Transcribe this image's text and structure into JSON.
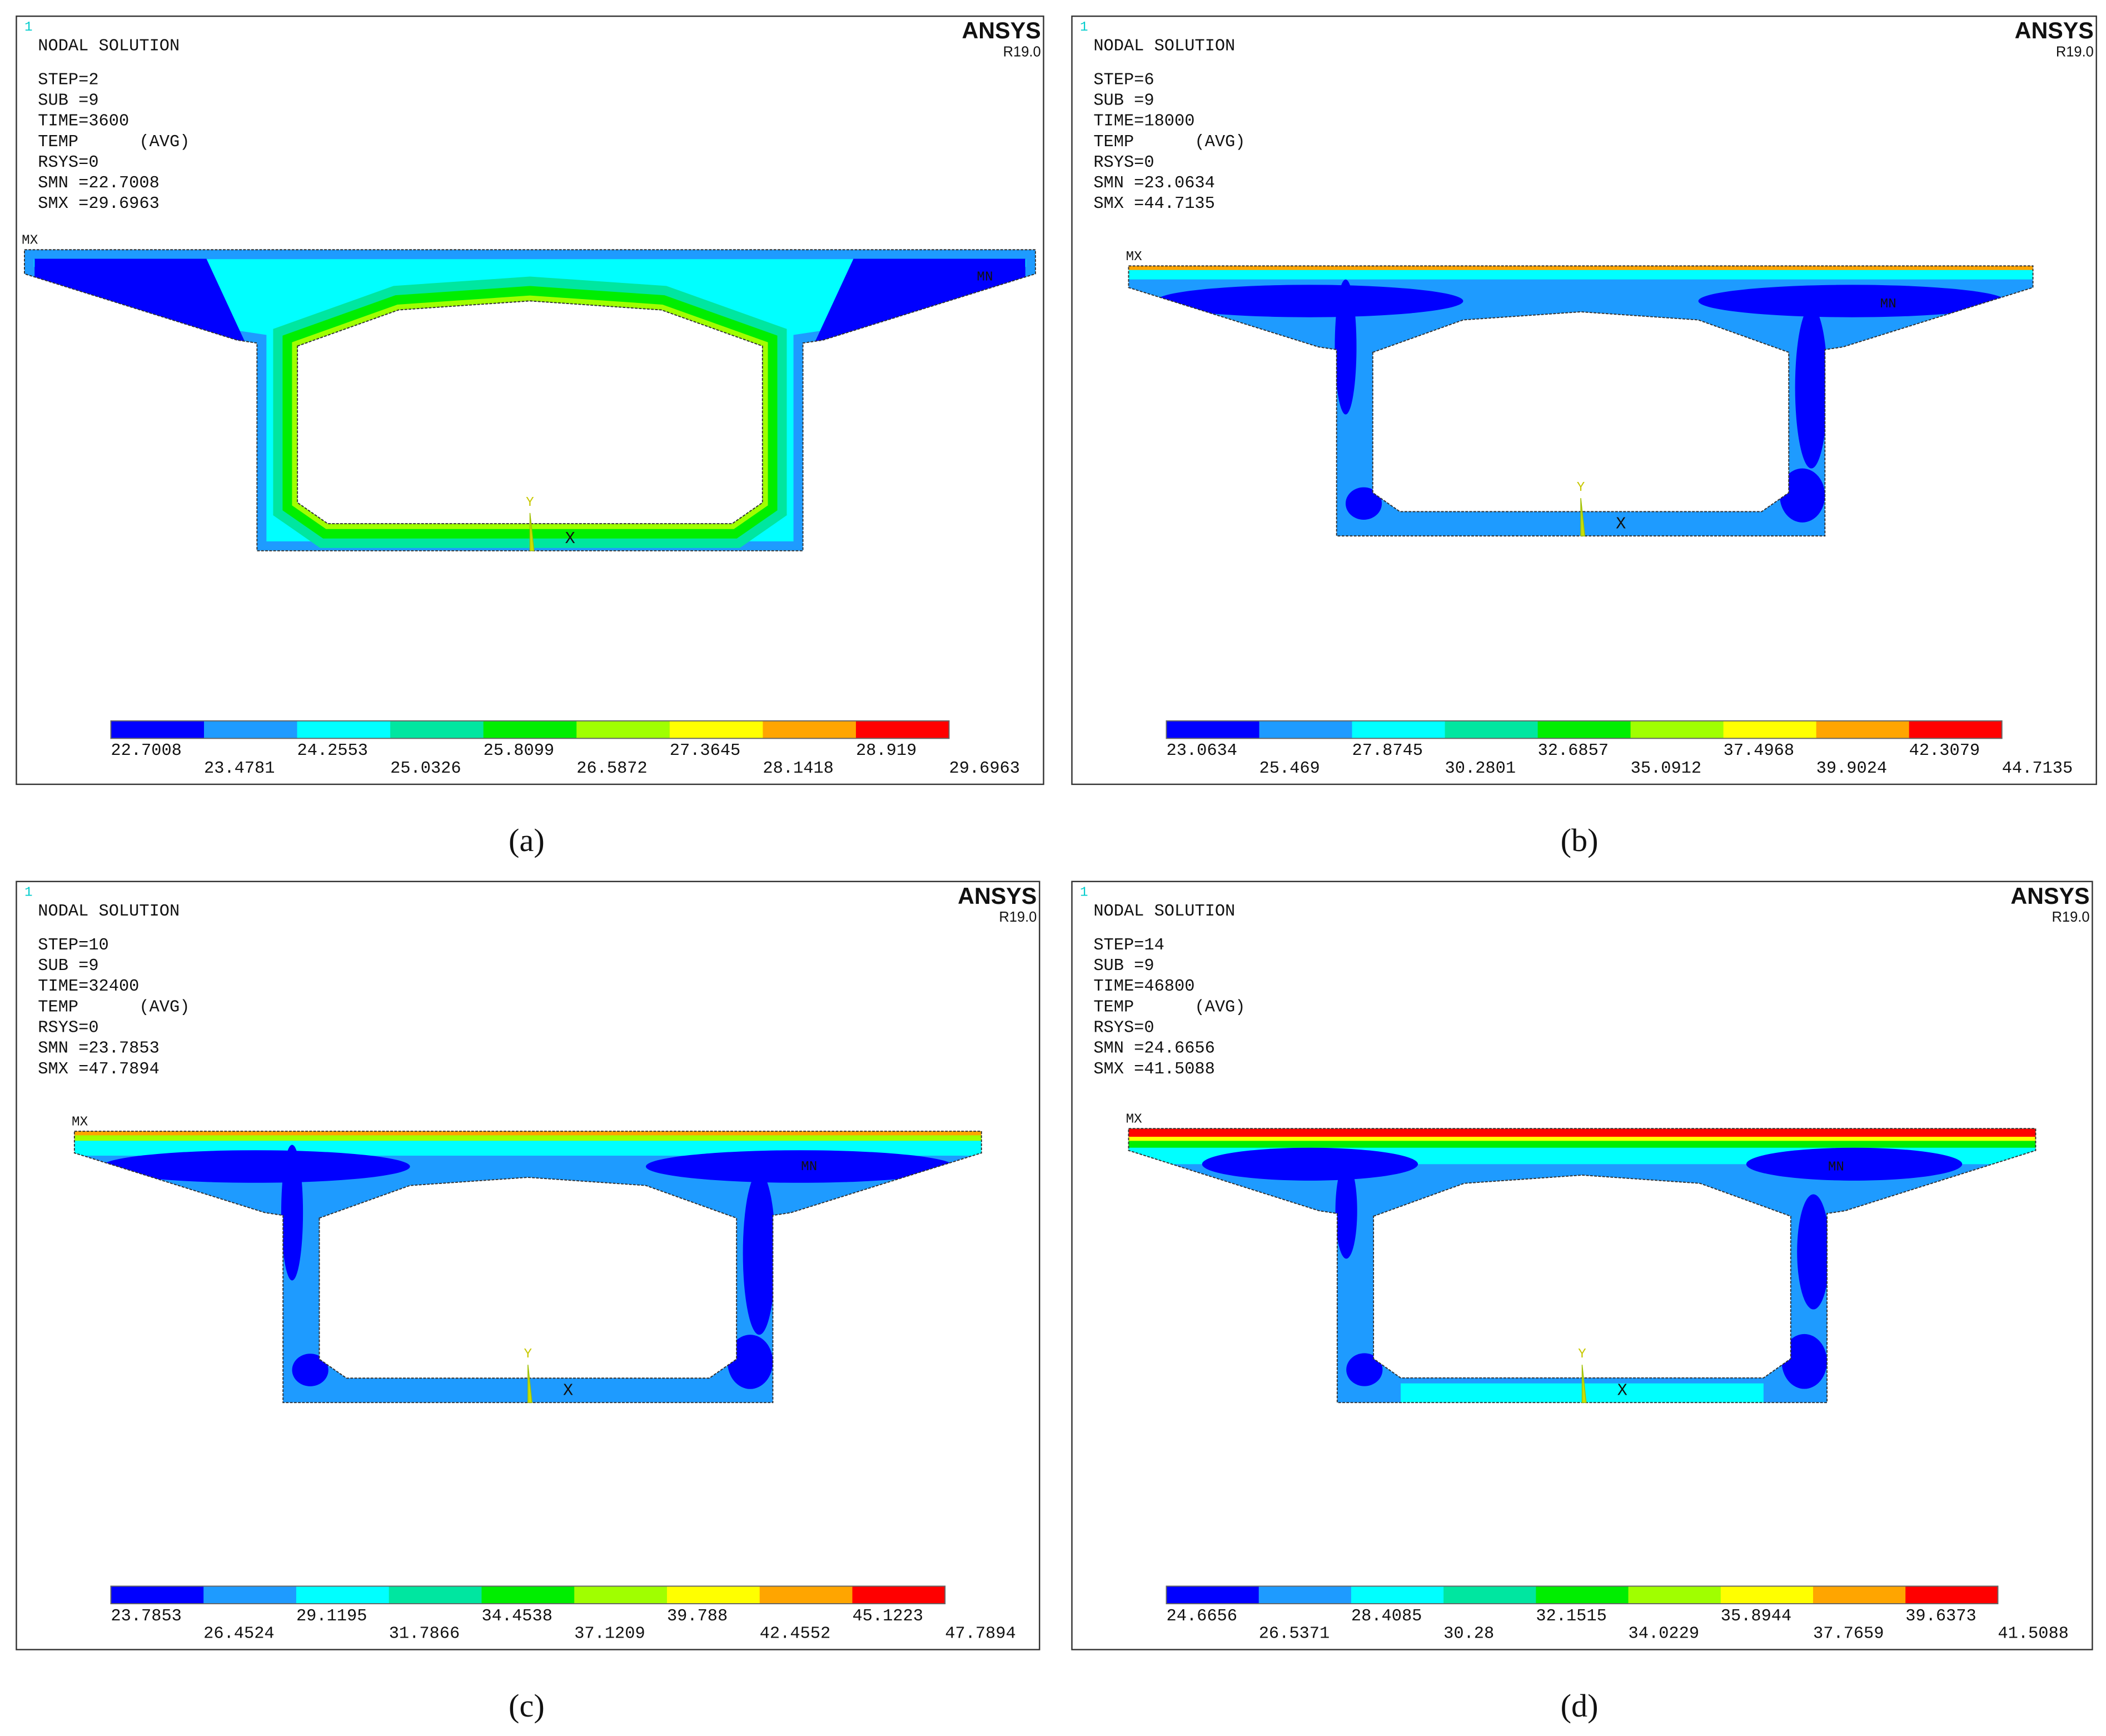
{
  "panels": [
    {
      "caption": "(a)",
      "frame_number": "1",
      "title": "NODAL SOLUTION",
      "info": [
        "STEP=2",
        "SUB =9",
        "TIME=3600",
        "TEMP      (AVG)",
        "RSYS=0",
        "SMN =22.7008",
        "SMX =29.6963"
      ],
      "brand": "ANSYS",
      "version": "R19.0",
      "max_marker": "MX",
      "min_marker": "MN",
      "axis_y": "Y",
      "axis_x": "X",
      "legend_labels": [
        "22.7008",
        "23.4781",
        "24.2553",
        "25.0326",
        "25.8099",
        "26.5872",
        "27.3645",
        "28.1418",
        "28.919",
        "29.6963"
      ]
    },
    {
      "caption": "(b)",
      "frame_number": "1",
      "title": "NODAL SOLUTION",
      "info": [
        "STEP=6",
        "SUB =9",
        "TIME=18000",
        "TEMP      (AVG)",
        "RSYS=0",
        "SMN =23.0634",
        "SMX =44.7135"
      ],
      "brand": "ANSYS",
      "version": "R19.0",
      "max_marker": "MX",
      "min_marker": "MN",
      "axis_y": "Y",
      "axis_x": "X",
      "legend_labels": [
        "23.0634",
        "25.469",
        "27.8745",
        "30.2801",
        "32.6857",
        "35.0912",
        "37.4968",
        "39.9024",
        "42.3079",
        "44.7135"
      ]
    },
    {
      "caption": "(c)",
      "frame_number": "1",
      "title": "NODAL SOLUTION",
      "info": [
        "STEP=10",
        "SUB =9",
        "TIME=32400",
        "TEMP      (AVG)",
        "RSYS=0",
        "SMN =23.7853",
        "SMX =47.7894"
      ],
      "brand": "ANSYS",
      "version": "R19.0",
      "max_marker": "MX",
      "min_marker": "MN",
      "axis_y": "Y",
      "axis_x": "X",
      "legend_labels": [
        "23.7853",
        "26.4524",
        "29.1195",
        "31.7866",
        "34.4538",
        "37.1209",
        "39.788",
        "42.4552",
        "45.1223",
        "47.7894"
      ]
    },
    {
      "caption": "(d)",
      "frame_number": "1",
      "title": "NODAL SOLUTION",
      "info": [
        "STEP=14",
        "SUB =9",
        "TIME=46800",
        "TEMP      (AVG)",
        "RSYS=0",
        "SMN =24.6656",
        "SMX =41.5088"
      ],
      "brand": "ANSYS",
      "version": "R19.0",
      "max_marker": "MX",
      "min_marker": "MN",
      "axis_y": "Y",
      "axis_x": "X",
      "legend_labels": [
        "24.6656",
        "26.5371",
        "28.4085",
        "30.28",
        "32.1515",
        "34.0229",
        "35.8944",
        "37.7659",
        "39.6373",
        "41.5088"
      ]
    }
  ],
  "legend_colors": [
    "#0000ff",
    "#1e9bff",
    "#00ffff",
    "#00e6a0",
    "#00ee00",
    "#a0ff00",
    "#ffff00",
    "#ffa500",
    "#ff0000"
  ]
}
